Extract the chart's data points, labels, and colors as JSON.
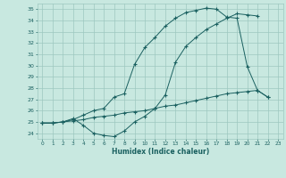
{
  "xlabel": "Humidex (Indice chaleur)",
  "xlim": [
    -0.5,
    23.5
  ],
  "ylim": [
    23.5,
    35.5
  ],
  "xticks": [
    0,
    1,
    2,
    3,
    4,
    5,
    6,
    7,
    8,
    9,
    10,
    11,
    12,
    13,
    14,
    15,
    16,
    17,
    18,
    19,
    20,
    21,
    22,
    23
  ],
  "yticks": [
    24,
    25,
    26,
    27,
    28,
    29,
    30,
    31,
    32,
    33,
    34,
    35
  ],
  "bg_color": "#c8e8e0",
  "grid_color": "#9dc8c0",
  "line_color": "#1a6060",
  "curve1_x": [
    0,
    1,
    2,
    3,
    4,
    5,
    6,
    7,
    8,
    9,
    10,
    11,
    12,
    13,
    14,
    15,
    16,
    17,
    18,
    19,
    20,
    21,
    22
  ],
  "curve1_y": [
    24.9,
    24.9,
    25.0,
    25.2,
    25.6,
    26.0,
    26.2,
    27.2,
    27.5,
    30.1,
    31.6,
    32.5,
    33.5,
    34.2,
    34.7,
    34.9,
    35.1,
    35.0,
    34.3,
    34.2,
    29.9,
    27.8,
    27.2
  ],
  "curve2_x": [
    0,
    1,
    2,
    3,
    4,
    5,
    6,
    7,
    8,
    9,
    10,
    11,
    12,
    13,
    14,
    15,
    16,
    17,
    18,
    19,
    20,
    21
  ],
  "curve2_y": [
    24.9,
    24.9,
    25.0,
    25.3,
    24.7,
    24.0,
    23.8,
    23.7,
    24.2,
    25.0,
    25.5,
    26.2,
    27.4,
    30.3,
    31.7,
    32.5,
    33.2,
    33.7,
    34.2,
    34.6,
    34.5,
    34.4
  ],
  "curve3_x": [
    0,
    1,
    2,
    3,
    4,
    5,
    6,
    7,
    8,
    9,
    10,
    11,
    12,
    13,
    14,
    15,
    16,
    17,
    18,
    19,
    20,
    21,
    22,
    23
  ],
  "curve3_y": [
    24.9,
    24.9,
    25.0,
    25.1,
    25.2,
    25.4,
    25.5,
    25.6,
    25.8,
    25.9,
    26.0,
    26.2,
    26.4,
    26.5,
    26.7,
    26.9,
    27.1,
    27.3,
    27.5,
    27.6,
    27.7,
    27.8,
    27.2,
    null
  ]
}
